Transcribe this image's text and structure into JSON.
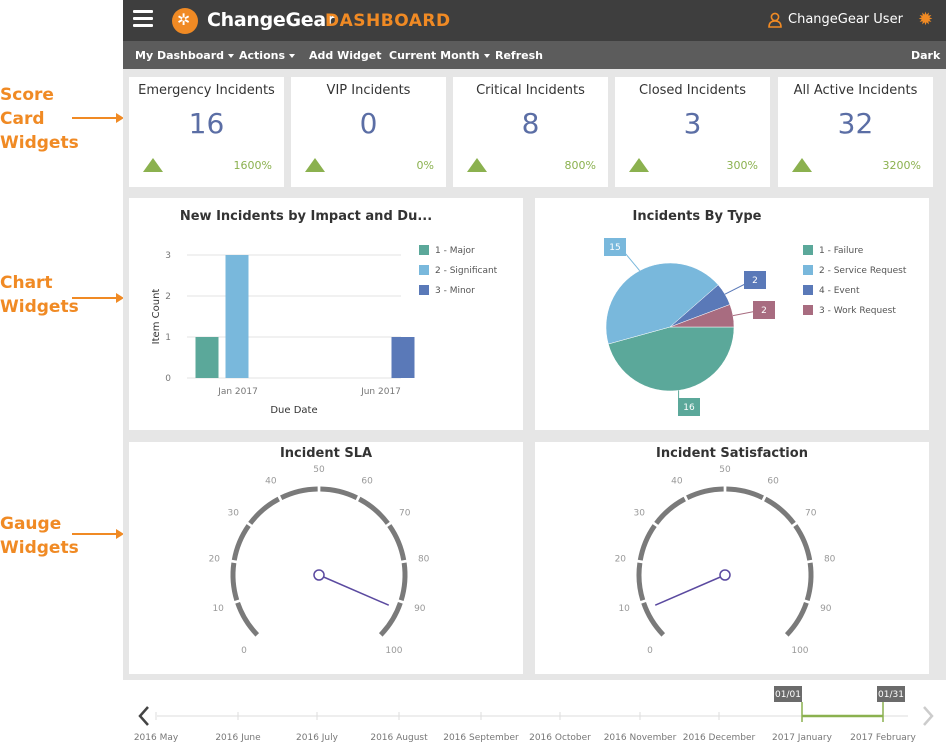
{
  "annotations": {
    "score_cards": [
      "Score",
      "Card",
      "Widgets"
    ],
    "charts": [
      "Chart",
      "Widgets"
    ],
    "gauges": [
      "Gauge",
      "Widgets"
    ]
  },
  "header": {
    "brand": "ChangeGear",
    "section": "DASHBOARD",
    "user": "ChangeGear User",
    "colors": {
      "bar": "#3e3e3e",
      "accent": "#f08a24"
    }
  },
  "toolbar": {
    "my_dashboard": "My Dashboard",
    "actions": "Actions",
    "add_widget": "Add Widget",
    "current_month": "Current Month",
    "refresh": "Refresh",
    "theme": "Dark"
  },
  "score_cards": [
    {
      "title": "Emergency Incidents",
      "value": "16",
      "change": "1600%"
    },
    {
      "title": "VIP Incidents",
      "value": "0",
      "change": "0%"
    },
    {
      "title": "Critical Incidents",
      "value": "8",
      "change": "800%"
    },
    {
      "title": "Closed Incidents",
      "value": "3",
      "change": "300%"
    },
    {
      "title": "All Active Incidents",
      "value": "32",
      "change": "3200%"
    }
  ],
  "chart_data": [
    {
      "type": "bar",
      "title": "New Incidents by Impact and Du...",
      "xlabel": "Due Date",
      "ylabel": "Item Count",
      "ylim": [
        0,
        3
      ],
      "yticks": [
        "0",
        "1",
        "2",
        "3"
      ],
      "categories": [
        "Jan 2017",
        "Jun 2017"
      ],
      "series": [
        {
          "name": "1 - Major",
          "color": "#5ba89a",
          "values": [
            1,
            0
          ]
        },
        {
          "name": "2 - Significant",
          "color": "#79b8dc",
          "values": [
            3,
            0
          ]
        },
        {
          "name": "3 - Minor",
          "color": "#5a79b8",
          "values": [
            0,
            1
          ]
        }
      ],
      "legend": "right",
      "grid": true
    },
    {
      "type": "pie",
      "title": "Incidents By Type",
      "slices": [
        {
          "name": "1 - Failure",
          "value": 16,
          "color": "#5ba89a"
        },
        {
          "name": "2 - Service Request",
          "value": 15,
          "color": "#79b8dc"
        },
        {
          "name": "4 - Event",
          "value": 2,
          "color": "#5a79b8"
        },
        {
          "name": "3 - Work Request",
          "value": 2,
          "color": "#a86c80"
        }
      ],
      "legend": "right"
    }
  ],
  "gauges": [
    {
      "title": "Incident SLA",
      "min": 0,
      "max": 100,
      "ticks": [
        "0",
        "10",
        "20",
        "30",
        "40",
        "50",
        "60",
        "70",
        "80",
        "90",
        "100"
      ],
      "value": 92
    },
    {
      "title": "Incident Satisfaction",
      "min": 0,
      "max": 100,
      "ticks": [
        "0",
        "10",
        "20",
        "30",
        "40",
        "50",
        "60",
        "70",
        "80",
        "90",
        "100"
      ],
      "value": 8
    }
  ],
  "timeline": {
    "months": [
      "2016 May",
      "2016 June",
      "2016 July",
      "2016 August",
      "2016 September",
      "2016 October",
      "2016 November",
      "2016 December",
      "2017 January",
      "2017 February"
    ],
    "start_flag": "01/01",
    "end_flag": "01/31",
    "accent": "#8bb14f"
  }
}
